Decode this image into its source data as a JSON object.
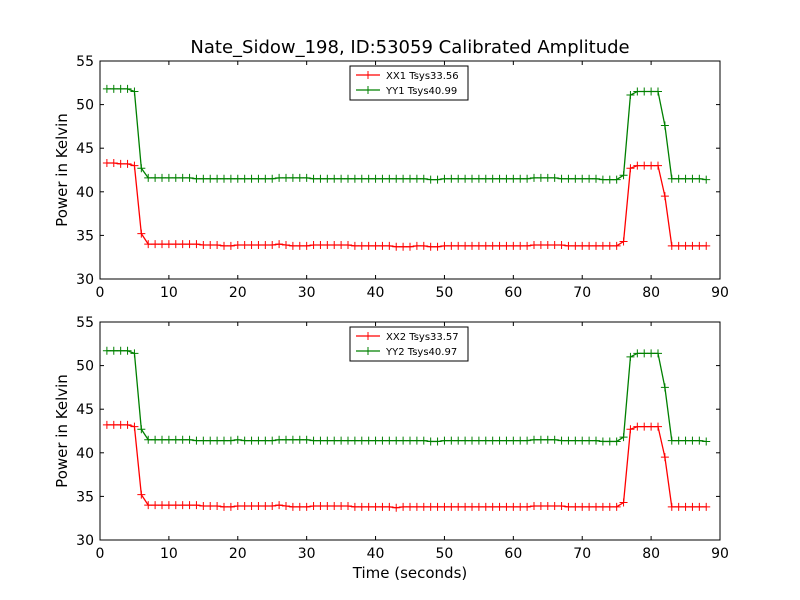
{
  "chart_data": [
    {
      "type": "line",
      "title": "Nate_Sidow_198, ID:53059 Calibrated Amplitude",
      "xlabel": "",
      "ylabel": "Power in Kelvin",
      "xlim": [
        0,
        90
      ],
      "ylim": [
        30,
        55
      ],
      "xticks": [
        0,
        10,
        20,
        30,
        40,
        50,
        60,
        70,
        80,
        90
      ],
      "yticks": [
        30,
        35,
        40,
        45,
        50,
        55
      ],
      "grid": false,
      "legend_position": "top-center",
      "x": [
        1,
        2,
        3,
        4,
        5,
        6,
        7,
        8,
        9,
        10,
        11,
        12,
        13,
        14,
        15,
        16,
        17,
        18,
        19,
        20,
        21,
        22,
        23,
        24,
        25,
        26,
        27,
        28,
        29,
        30,
        31,
        32,
        33,
        34,
        35,
        36,
        37,
        38,
        39,
        40,
        41,
        42,
        43,
        44,
        45,
        46,
        47,
        48,
        49,
        50,
        51,
        52,
        53,
        54,
        55,
        56,
        57,
        58,
        59,
        60,
        61,
        62,
        63,
        64,
        65,
        66,
        67,
        68,
        69,
        70,
        71,
        72,
        73,
        74,
        75,
        76,
        77,
        78,
        79,
        80,
        81,
        82,
        83,
        84,
        85,
        86,
        87,
        88
      ],
      "series": [
        {
          "name": "XX1 Tsys33.56",
          "color": "#ff0000",
          "values": [
            43.3,
            43.3,
            43.2,
            43.2,
            43.0,
            35.2,
            34.0,
            34.0,
            34.0,
            34.0,
            34.0,
            34.0,
            34.0,
            34.0,
            33.9,
            33.9,
            33.9,
            33.8,
            33.8,
            33.9,
            33.9,
            33.9,
            33.9,
            33.9,
            33.9,
            34.0,
            33.9,
            33.8,
            33.8,
            33.8,
            33.9,
            33.9,
            33.9,
            33.9,
            33.9,
            33.9,
            33.8,
            33.8,
            33.8,
            33.8,
            33.8,
            33.8,
            33.7,
            33.7,
            33.7,
            33.8,
            33.8,
            33.7,
            33.7,
            33.8,
            33.8,
            33.8,
            33.8,
            33.8,
            33.8,
            33.8,
            33.8,
            33.8,
            33.8,
            33.8,
            33.8,
            33.8,
            33.9,
            33.9,
            33.9,
            33.9,
            33.9,
            33.8,
            33.8,
            33.8,
            33.8,
            33.8,
            33.8,
            33.8,
            33.8,
            34.3,
            42.7,
            43.0,
            43.0,
            43.0,
            43.0,
            39.5,
            33.8,
            33.8,
            33.8,
            33.8,
            33.8,
            33.8
          ]
        },
        {
          "name": "YY1 Tsys40.99",
          "color": "#008000",
          "values": [
            51.8,
            51.8,
            51.8,
            51.8,
            51.5,
            42.7,
            41.6,
            41.6,
            41.6,
            41.6,
            41.6,
            41.6,
            41.6,
            41.5,
            41.5,
            41.5,
            41.5,
            41.5,
            41.5,
            41.5,
            41.5,
            41.5,
            41.5,
            41.5,
            41.5,
            41.6,
            41.6,
            41.6,
            41.6,
            41.6,
            41.5,
            41.5,
            41.5,
            41.5,
            41.5,
            41.5,
            41.5,
            41.5,
            41.5,
            41.5,
            41.5,
            41.5,
            41.5,
            41.5,
            41.5,
            41.5,
            41.5,
            41.4,
            41.4,
            41.5,
            41.5,
            41.5,
            41.5,
            41.5,
            41.5,
            41.5,
            41.5,
            41.5,
            41.5,
            41.5,
            41.5,
            41.5,
            41.6,
            41.6,
            41.6,
            41.6,
            41.5,
            41.5,
            41.5,
            41.5,
            41.5,
            41.5,
            41.4,
            41.4,
            41.4,
            41.9,
            51.1,
            51.5,
            51.5,
            51.5,
            51.5,
            47.6,
            41.5,
            41.5,
            41.5,
            41.5,
            41.5,
            41.4
          ]
        }
      ]
    },
    {
      "type": "line",
      "title": "",
      "xlabel": "Time (seconds)",
      "ylabel": "Power in Kelvin",
      "xlim": [
        0,
        90
      ],
      "ylim": [
        30,
        55
      ],
      "xticks": [
        0,
        10,
        20,
        30,
        40,
        50,
        60,
        70,
        80,
        90
      ],
      "yticks": [
        30,
        35,
        40,
        45,
        50,
        55
      ],
      "grid": false,
      "legend_position": "top-center",
      "x": [
        1,
        2,
        3,
        4,
        5,
        6,
        7,
        8,
        9,
        10,
        11,
        12,
        13,
        14,
        15,
        16,
        17,
        18,
        19,
        20,
        21,
        22,
        23,
        24,
        25,
        26,
        27,
        28,
        29,
        30,
        31,
        32,
        33,
        34,
        35,
        36,
        37,
        38,
        39,
        40,
        41,
        42,
        43,
        44,
        45,
        46,
        47,
        48,
        49,
        50,
        51,
        52,
        53,
        54,
        55,
        56,
        57,
        58,
        59,
        60,
        61,
        62,
        63,
        64,
        65,
        66,
        67,
        68,
        69,
        70,
        71,
        72,
        73,
        74,
        75,
        76,
        77,
        78,
        79,
        80,
        81,
        82,
        83,
        84,
        85,
        86,
        87,
        88
      ],
      "series": [
        {
          "name": "XX2 Tsys33.57",
          "color": "#ff0000",
          "values": [
            43.2,
            43.2,
            43.2,
            43.2,
            43.0,
            35.2,
            34.0,
            34.0,
            34.0,
            34.0,
            34.0,
            34.0,
            34.0,
            34.0,
            33.9,
            33.9,
            33.9,
            33.8,
            33.8,
            33.9,
            33.9,
            33.9,
            33.9,
            33.9,
            33.9,
            34.0,
            33.9,
            33.8,
            33.8,
            33.8,
            33.9,
            33.9,
            33.9,
            33.9,
            33.9,
            33.9,
            33.8,
            33.8,
            33.8,
            33.8,
            33.8,
            33.8,
            33.7,
            33.8,
            33.8,
            33.8,
            33.8,
            33.8,
            33.8,
            33.8,
            33.8,
            33.8,
            33.8,
            33.8,
            33.8,
            33.8,
            33.8,
            33.8,
            33.8,
            33.8,
            33.8,
            33.8,
            33.9,
            33.9,
            33.9,
            33.9,
            33.9,
            33.8,
            33.8,
            33.8,
            33.8,
            33.8,
            33.8,
            33.8,
            33.8,
            34.3,
            42.7,
            43.0,
            43.0,
            43.0,
            43.0,
            39.5,
            33.8,
            33.8,
            33.8,
            33.8,
            33.8,
            33.8
          ]
        },
        {
          "name": "YY2 Tsys40.97",
          "color": "#008000",
          "values": [
            51.7,
            51.7,
            51.7,
            51.7,
            51.4,
            42.7,
            41.5,
            41.5,
            41.5,
            41.5,
            41.5,
            41.5,
            41.5,
            41.4,
            41.4,
            41.4,
            41.4,
            41.4,
            41.4,
            41.5,
            41.4,
            41.4,
            41.4,
            41.4,
            41.4,
            41.5,
            41.5,
            41.5,
            41.5,
            41.5,
            41.4,
            41.4,
            41.4,
            41.4,
            41.4,
            41.4,
            41.4,
            41.4,
            41.4,
            41.4,
            41.4,
            41.4,
            41.4,
            41.4,
            41.4,
            41.4,
            41.4,
            41.3,
            41.3,
            41.4,
            41.4,
            41.4,
            41.4,
            41.4,
            41.4,
            41.4,
            41.4,
            41.4,
            41.4,
            41.4,
            41.4,
            41.4,
            41.5,
            41.5,
            41.5,
            41.5,
            41.4,
            41.4,
            41.4,
            41.4,
            41.4,
            41.4,
            41.3,
            41.3,
            41.3,
            41.8,
            51.0,
            51.4,
            51.4,
            51.4,
            51.4,
            47.5,
            41.4,
            41.4,
            41.4,
            41.4,
            41.4,
            41.3
          ]
        }
      ]
    }
  ]
}
